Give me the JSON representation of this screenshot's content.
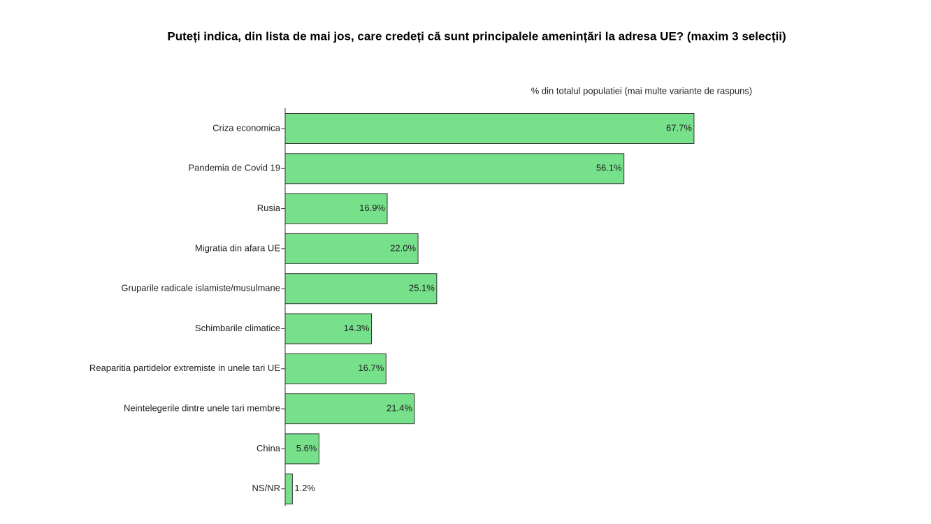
{
  "chart_data": {
    "type": "bar",
    "orientation": "horizontal",
    "title": "Puteți indica, din lista de mai jos, care credeți că sunt principalele amenințări la adresa UE? (maxim 3 selecții)",
    "subtitle": "% din totalul populatiei (mai multe variante de raspuns)",
    "categories": [
      "Criza economica",
      "Pandemia de Covid 19",
      "Rusia",
      "Migratia din afara UE",
      "Gruparile radicale islamiste/musulmane",
      "Schimbarile climatice",
      "Reaparitia partidelor extremiste in unele tari UE",
      "Neintelegerile dintre unele tari membre",
      "China",
      "NS/NR"
    ],
    "values": [
      67.7,
      56.1,
      16.9,
      22.0,
      25.1,
      14.3,
      16.7,
      21.4,
      5.6,
      1.2
    ],
    "value_labels": [
      "67.7%",
      "56.1%",
      "16.9%",
      "22.0%",
      "25.1%",
      "14.3%",
      "16.7%",
      "21.4%",
      "5.6%",
      "1.2%"
    ],
    "color": "#77e08a"
  }
}
